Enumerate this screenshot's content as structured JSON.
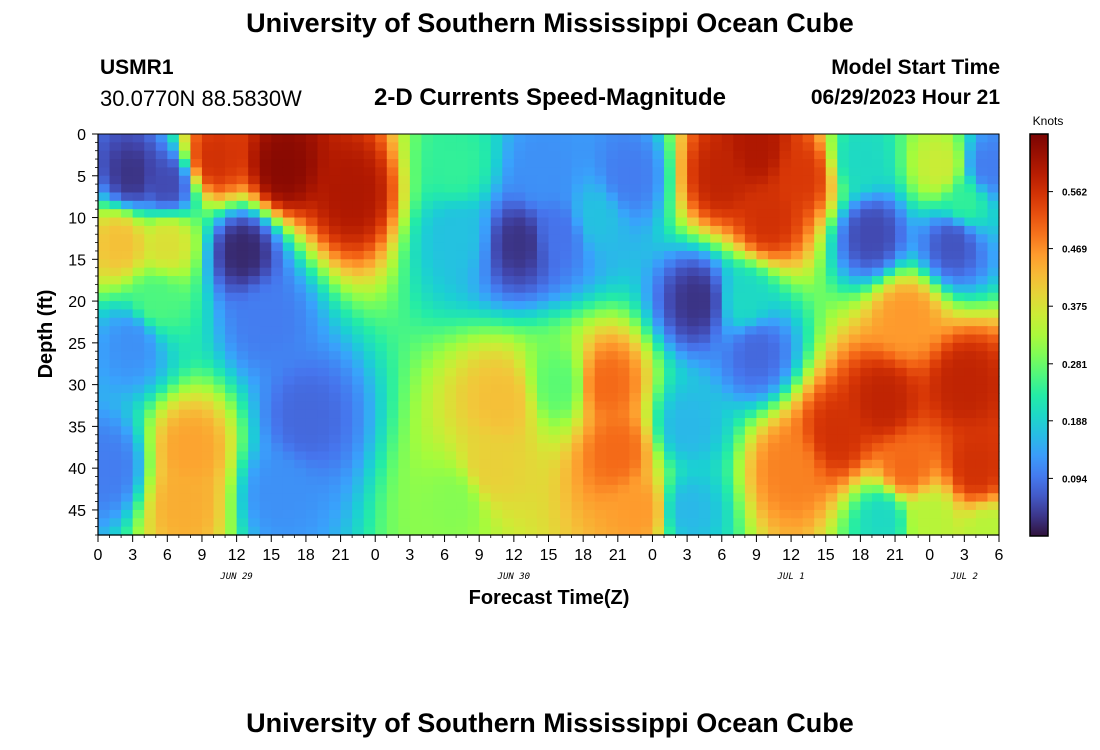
{
  "header": {
    "title": "University of Southern Mississippi Ocean Cube",
    "station": "USMR1",
    "coordinates": "30.0770N  88.5830W",
    "subtitle": "2-D Currents Speed-Magnitude",
    "model_start_label": "Model Start Time",
    "model_start_value": "06/29/2023 Hour 21",
    "footer_title": "University of Southern Mississippi Ocean Cube"
  },
  "chart_data": {
    "type": "heatmap",
    "title": "2-D Currents Speed-Magnitude",
    "xlabel": "Forecast Time(Z)",
    "ylabel": "Depth (ft)",
    "x_tick_labels": [
      "0",
      "3",
      "6",
      "9",
      "12",
      "15",
      "18",
      "21",
      "0",
      "3",
      "6",
      "9",
      "12",
      "15",
      "18",
      "21",
      "0",
      "3",
      "6",
      "9",
      "12",
      "15",
      "18",
      "21",
      "0",
      "3",
      "6"
    ],
    "x_range_hours": [
      0,
      78
    ],
    "day_labels": [
      {
        "label": "JUN 29",
        "hour": 12
      },
      {
        "label": "JUN 30",
        "hour": 36
      },
      {
        "label": "JUL 1",
        "hour": 60
      },
      {
        "label": "JUL 2",
        "hour": 75
      }
    ],
    "y_ticks": [
      0,
      5,
      10,
      15,
      20,
      25,
      30,
      35,
      40,
      45
    ],
    "y_range": [
      0,
      48
    ],
    "y_inverted": true,
    "colorbar": {
      "unit": "Knots",
      "ticks": [
        "0.562",
        "0.469",
        "0.375",
        "0.281",
        "0.188",
        "0.094"
      ],
      "tick_values": [
        0.562,
        0.469,
        0.375,
        0.281,
        0.188,
        0.094
      ],
      "range": [
        0.0,
        0.656
      ],
      "colormap": "turbo"
    },
    "features": [
      {
        "hour": 16,
        "depth": 4,
        "value": 0.64
      },
      {
        "hour": 22,
        "depth": 7,
        "value": 0.6
      },
      {
        "hour": 10,
        "depth": 3,
        "value": 0.56
      },
      {
        "hour": 3,
        "depth": 5,
        "value": 0.03
      },
      {
        "hour": 6,
        "depth": 6,
        "value": 0.05
      },
      {
        "hour": 2,
        "depth": 13,
        "value": 0.42
      },
      {
        "hour": 6,
        "depth": 13,
        "value": 0.38
      },
      {
        "hour": 12.5,
        "depth": 14,
        "value": 0.02
      },
      {
        "hour": 14.5,
        "depth": 22,
        "value": 0.1
      },
      {
        "hour": 18,
        "depth": 34,
        "value": 0.08
      },
      {
        "hour": 15.5,
        "depth": 43,
        "value": 0.12
      },
      {
        "hour": 8,
        "depth": 38,
        "value": 0.45
      },
      {
        "hour": 7.5,
        "depth": 44,
        "value": 0.44
      },
      {
        "hour": 3,
        "depth": 25,
        "value": 0.12
      },
      {
        "hour": 1,
        "depth": 40,
        "value": 0.1
      },
      {
        "hour": 5,
        "depth": 20,
        "value": 0.26
      },
      {
        "hour": 36.5,
        "depth": 13,
        "value": 0.03
      },
      {
        "hour": 40,
        "depth": 12,
        "value": 0.09
      },
      {
        "hour": 43,
        "depth": 10,
        "value": 0.17
      },
      {
        "hour": 31,
        "depth": 12,
        "value": 0.17
      },
      {
        "hour": 38.5,
        "depth": 5,
        "value": 0.12
      },
      {
        "hour": 46,
        "depth": 5,
        "value": 0.1
      },
      {
        "hour": 31,
        "depth": 4,
        "value": 0.24
      },
      {
        "hour": 35,
        "depth": 32,
        "value": 0.42
      },
      {
        "hour": 34,
        "depth": 40,
        "value": 0.4
      },
      {
        "hour": 31,
        "depth": 44,
        "value": 0.3
      },
      {
        "hour": 44,
        "depth": 30,
        "value": 0.5
      },
      {
        "hour": 45,
        "depth": 38,
        "value": 0.5
      },
      {
        "hour": 47,
        "depth": 45,
        "value": 0.46
      },
      {
        "hour": 40,
        "depth": 30,
        "value": 0.27
      },
      {
        "hour": 51,
        "depth": 35,
        "value": 0.16
      },
      {
        "hour": 51,
        "depth": 45,
        "value": 0.16
      },
      {
        "hour": 54,
        "depth": 5,
        "value": 0.58
      },
      {
        "hour": 58,
        "depth": 10,
        "value": 0.56
      },
      {
        "hour": 61,
        "depth": 5,
        "value": 0.55
      },
      {
        "hour": 57,
        "depth": 2,
        "value": 0.6
      },
      {
        "hour": 52,
        "depth": 20,
        "value": 0.03
      },
      {
        "hour": 57,
        "depth": 26,
        "value": 0.08
      },
      {
        "hour": 56,
        "depth": 20,
        "value": 0.2
      },
      {
        "hour": 66,
        "depth": 3,
        "value": 0.2
      },
      {
        "hour": 73,
        "depth": 4,
        "value": 0.36
      },
      {
        "hour": 75,
        "depth": 8,
        "value": 0.24
      },
      {
        "hour": 67,
        "depth": 12,
        "value": 0.05
      },
      {
        "hour": 74,
        "depth": 13,
        "value": 0.06
      },
      {
        "hour": 77,
        "depth": 4,
        "value": 0.1
      },
      {
        "hour": 70,
        "depth": 22,
        "value": 0.46
      },
      {
        "hour": 64,
        "depth": 36,
        "value": 0.56
      },
      {
        "hour": 68,
        "depth": 32,
        "value": 0.58
      },
      {
        "hour": 75,
        "depth": 30,
        "value": 0.58
      },
      {
        "hour": 76,
        "depth": 40,
        "value": 0.56
      },
      {
        "hour": 70,
        "depth": 40,
        "value": 0.5
      },
      {
        "hour": 60,
        "depth": 40,
        "value": 0.48
      },
      {
        "hour": 68,
        "depth": 46,
        "value": 0.2
      },
      {
        "hour": 77,
        "depth": 48,
        "value": 0.34
      },
      {
        "hour": 72,
        "depth": 46,
        "value": 0.34
      }
    ]
  }
}
